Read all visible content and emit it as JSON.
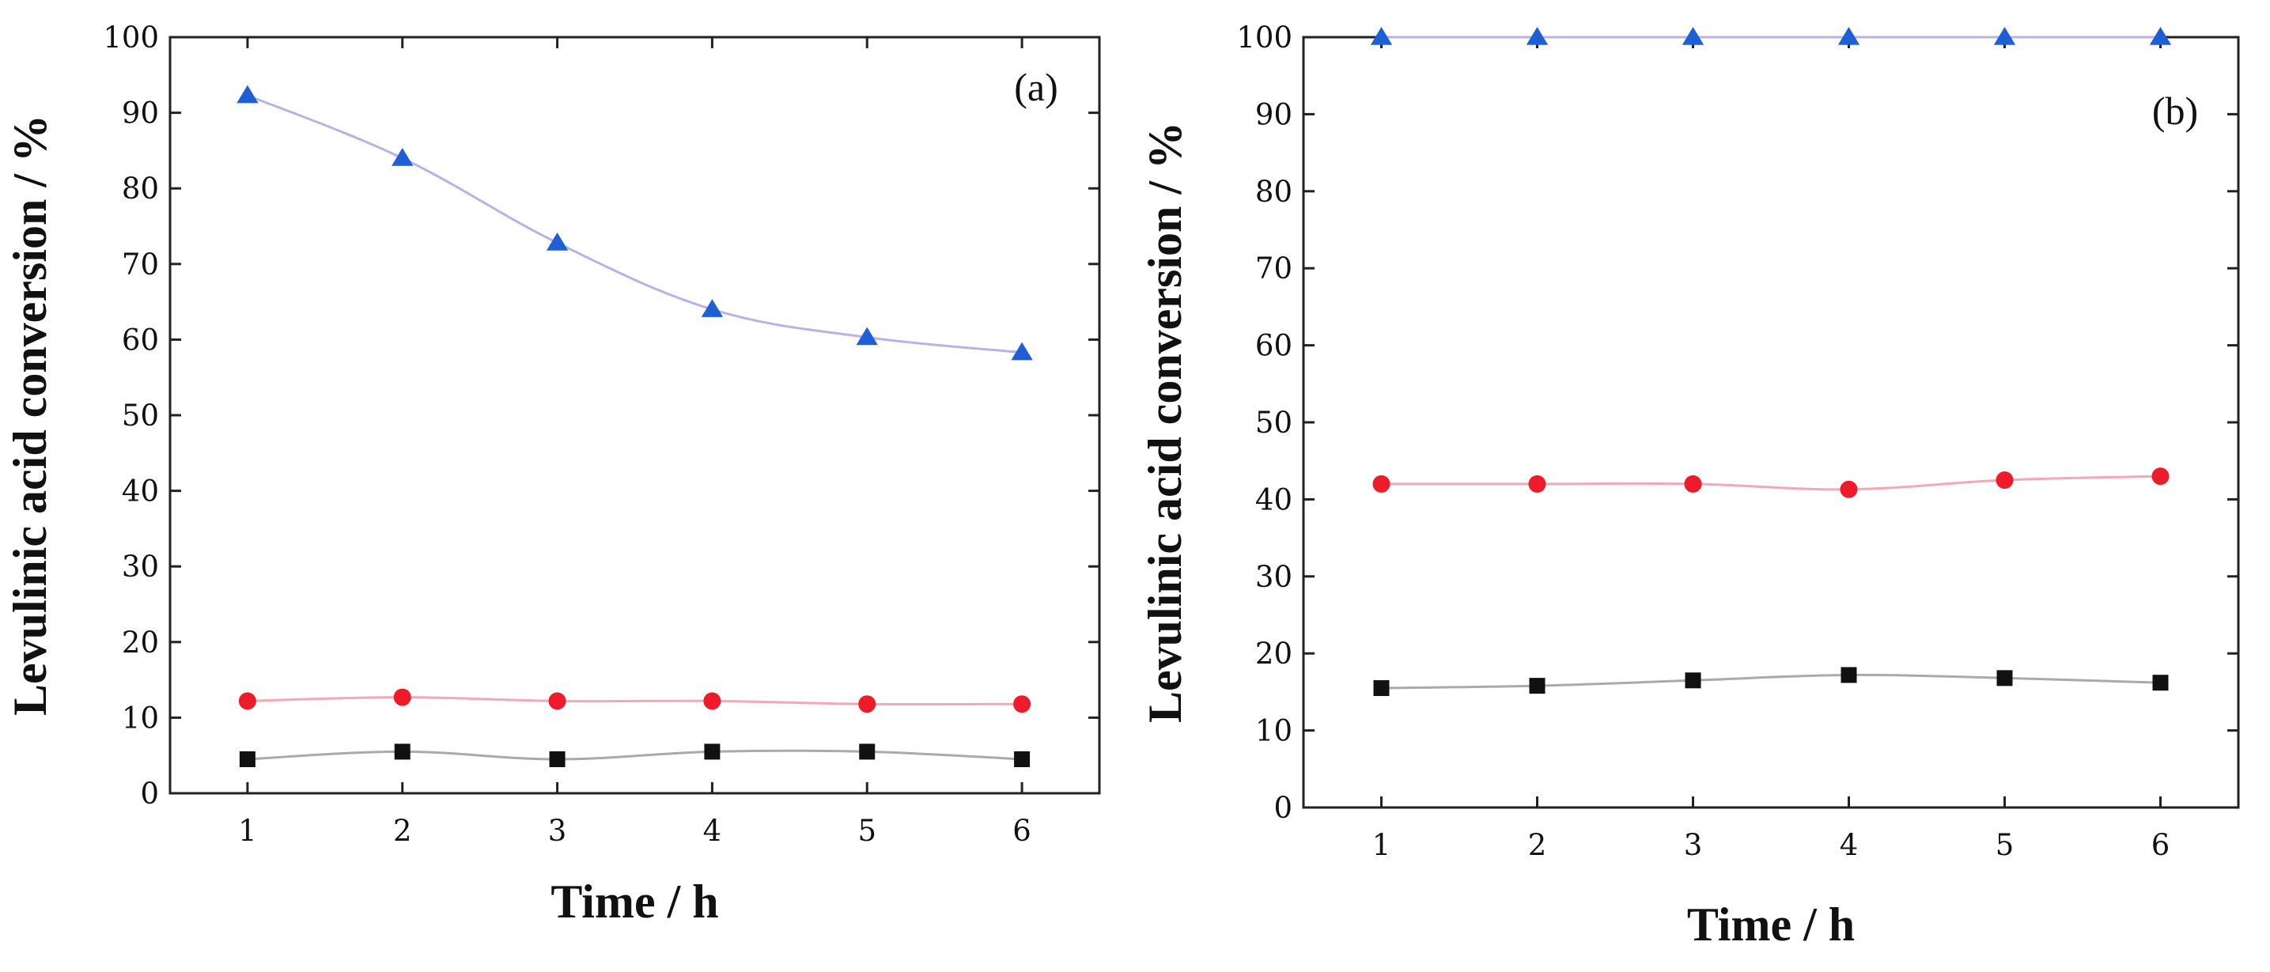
{
  "chart_data": [
    {
      "panel_id": "a",
      "type": "line",
      "panel_label": "(a)",
      "xlabel": "Time / h",
      "ylabel": "Levulinic acid conversion / %",
      "x": [
        1,
        2,
        3,
        4,
        5,
        6
      ],
      "xlim": [
        0.5,
        6.5
      ],
      "ylim": [
        0,
        100
      ],
      "x_ticks": [
        "1",
        "2",
        "3",
        "4",
        "5",
        "6"
      ],
      "y_ticks": [
        "0",
        "10",
        "20",
        "30",
        "40",
        "50",
        "60",
        "70",
        "80",
        "90",
        "100"
      ],
      "grid": false,
      "legend": "none",
      "series": [
        {
          "name": "blue-triangle",
          "marker": "triangle",
          "marker_color": "#1f5fd6",
          "line_color": "#b7b3e8",
          "values": [
            92.3,
            84.0,
            72.8,
            64.0,
            60.3,
            58.3
          ]
        },
        {
          "name": "red-circle",
          "marker": "circle",
          "marker_color": "#ee1c2a",
          "line_color": "#f4a7b5",
          "values": [
            12.2,
            12.7,
            12.2,
            12.2,
            11.8,
            11.8
          ]
        },
        {
          "name": "black-square",
          "marker": "square",
          "marker_color": "#111111",
          "line_color": "#a9aba6",
          "values": [
            4.5,
            5.5,
            4.5,
            5.5,
            5.5,
            4.5
          ]
        }
      ]
    },
    {
      "panel_id": "b",
      "type": "line",
      "panel_label": "(b)",
      "xlabel": "Time / h",
      "ylabel": "Levulinic acid conversion / %",
      "x": [
        1,
        2,
        3,
        4,
        5,
        6
      ],
      "xlim": [
        0.5,
        6.5
      ],
      "ylim": [
        0,
        100
      ],
      "x_ticks": [
        "1",
        "2",
        "3",
        "4",
        "5",
        "6"
      ],
      "y_ticks": [
        "0",
        "10",
        "20",
        "30",
        "40",
        "50",
        "60",
        "70",
        "80",
        "90",
        "100"
      ],
      "grid": false,
      "legend": "none",
      "series": [
        {
          "name": "blue-triangle",
          "marker": "triangle",
          "marker_color": "#1f5fd6",
          "line_color": "#b7b3e8",
          "values": [
            100,
            100,
            100,
            100,
            100,
            100
          ]
        },
        {
          "name": "red-circle",
          "marker": "circle",
          "marker_color": "#ee1c2a",
          "line_color": "#f4a7b5",
          "values": [
            42.0,
            42.0,
            42.0,
            41.3,
            42.5,
            43.0
          ]
        },
        {
          "name": "black-square",
          "marker": "square",
          "marker_color": "#111111",
          "line_color": "#a9aba6",
          "values": [
            15.5,
            15.8,
            16.5,
            17.2,
            16.8,
            16.2
          ]
        }
      ]
    }
  ]
}
